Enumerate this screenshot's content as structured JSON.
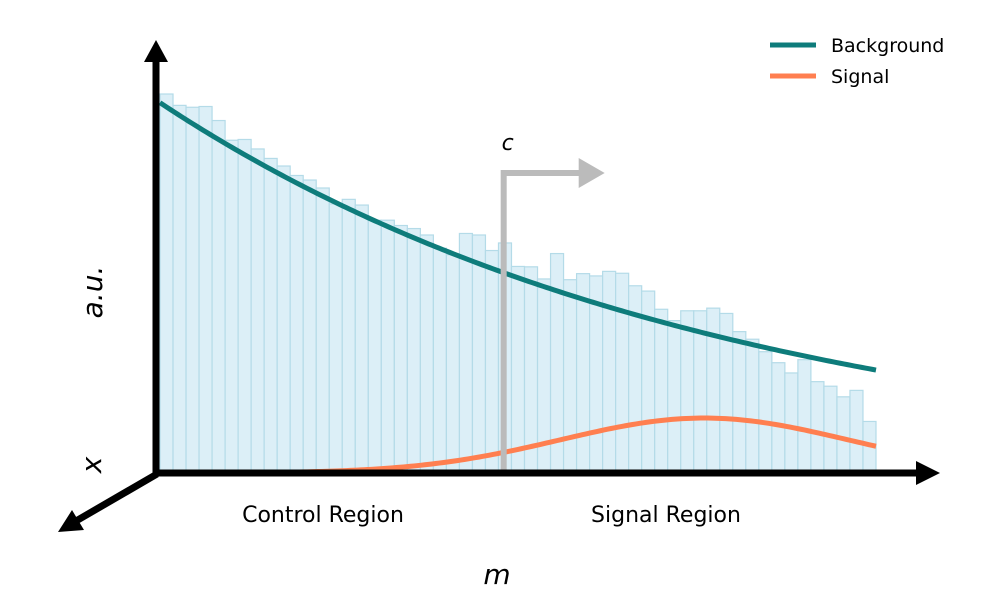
{
  "chart_data": {
    "type": "bar",
    "ylabel": "a.u.",
    "xlabel": "m",
    "zlabel": "x",
    "grid": false,
    "legend": {
      "placement": "top-right",
      "entries": [
        {
          "name": "Background",
          "color": "#0e7c7b"
        },
        {
          "name": "Signal",
          "color": "#ff7f50"
        }
      ]
    },
    "cut": {
      "label": "c",
      "value": 0.48,
      "color": "#bbbbbb"
    },
    "regions": {
      "control": "Control Region",
      "signal": "Signal Region"
    },
    "xlim": [
      0,
      1
    ],
    "ylim": [
      0,
      1
    ],
    "histogram": {
      "color": "#dceff7",
      "edge_color": "#b4dbe8",
      "values": [
        1.0,
        0.97,
        0.965,
        0.967,
        0.93,
        0.878,
        0.88,
        0.855,
        0.83,
        0.81,
        0.785,
        0.773,
        0.752,
        0.71,
        0.722,
        0.707,
        0.667,
        0.667,
        0.653,
        0.645,
        0.628,
        0.593,
        0.576,
        0.632,
        0.628,
        0.587,
        0.607,
        0.545,
        0.544,
        0.512,
        0.579,
        0.51,
        0.526,
        0.52,
        0.532,
        0.527,
        0.494,
        0.48,
        0.432,
        0.402,
        0.428,
        0.428,
        0.435,
        0.421,
        0.373,
        0.353,
        0.32,
        0.291,
        0.264,
        0.299,
        0.241,
        0.229,
        0.201,
        0.218,
        0.136
      ]
    },
    "series": [
      {
        "name": "Background",
        "color": "#0e7c7b",
        "function": "exp",
        "y0": 0.977,
        "decay": 1.28
      },
      {
        "name": "Signal",
        "color": "#ff7f50",
        "function": "gaussian",
        "amplitude": 0.145,
        "center": 0.76,
        "sigma": 0.2
      }
    ]
  }
}
